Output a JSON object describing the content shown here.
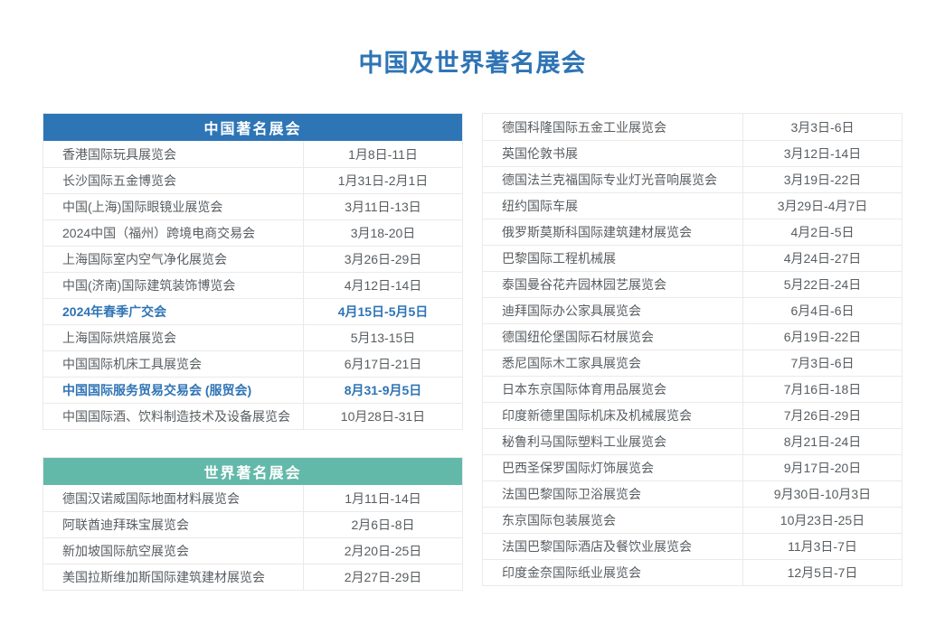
{
  "page_title": "中国及世界著名展会",
  "colors": {
    "title_blue": "#2e74b5",
    "china_header_bg": "#2e75b6",
    "world_header_bg": "#63b9a9",
    "highlight_blue": "#2e74b5",
    "row_text": "#585d61",
    "border": "#eaeaea",
    "page_bg": "#ffffff"
  },
  "china_table": {
    "header": "中国著名展会",
    "rows": [
      {
        "name": "香港国际玩具展览会",
        "date": "1月8日-11日",
        "highlight": false
      },
      {
        "name": "长沙国际五金博览会",
        "date": "1月31日-2月1日",
        "highlight": false
      },
      {
        "name": "中国(上海)国际眼镜业展览会",
        "date": "3月11日-13日",
        "highlight": false
      },
      {
        "name": "2024中国（福州）跨境电商交易会",
        "date": "3月18-20日",
        "highlight": false
      },
      {
        "name": "上海国际室内空气净化展览会",
        "date": "3月26日-29日",
        "highlight": false
      },
      {
        "name": "中国(济南)国际建筑装饰博览会",
        "date": "4月12日-14日",
        "highlight": false
      },
      {
        "name": "2024年春季广交会",
        "date": "4月15日-5月5日",
        "highlight": true
      },
      {
        "name": "上海国际烘焙展览会",
        "date": "5月13-15日",
        "highlight": false
      },
      {
        "name": "中国国际机床工具展览会",
        "date": "6月17日-21日",
        "highlight": false
      },
      {
        "name": "中国国际服务贸易交易会 (服贸会)",
        "date": "8月31-9月5日",
        "highlight": true
      },
      {
        "name": "中国国际酒、饮料制造技术及设备展览会",
        "date": "10月28日-31日",
        "highlight": false
      }
    ]
  },
  "world_table": {
    "header": "世界著名展会",
    "rows": [
      {
        "name": "德国汉诺威国际地面材料展览会",
        "date": "1月11日-14日",
        "highlight": false
      },
      {
        "name": "阿联酋迪拜珠宝展览会",
        "date": "2月6日-8日",
        "highlight": false
      },
      {
        "name": "新加坡国际航空展览会",
        "date": "2月20日-25日",
        "highlight": false
      },
      {
        "name": "美国拉斯维加斯国际建筑建材展览会",
        "date": "2月27日-29日",
        "highlight": false
      }
    ]
  },
  "world_table_continued": {
    "rows": [
      {
        "name": "德国科隆国际五金工业展览会",
        "date": "3月3日-6日",
        "highlight": false
      },
      {
        "name": "英国伦敦书展",
        "date": "3月12日-14日",
        "highlight": false
      },
      {
        "name": "德国法兰克福国际专业灯光音响展览会",
        "date": "3月19日-22日",
        "highlight": false
      },
      {
        "name": "纽约国际车展",
        "date": "3月29日-4月7日",
        "highlight": false
      },
      {
        "name": "俄罗斯莫斯科国际建筑建材展览会",
        "date": "4月2日-5日",
        "highlight": false
      },
      {
        "name": "巴黎国际工程机械展",
        "date": "4月24日-27日",
        "highlight": false
      },
      {
        "name": "泰国曼谷花卉园林园艺展览会",
        "date": "5月22日-24日",
        "highlight": false
      },
      {
        "name": "迪拜国际办公家具展览会",
        "date": "6月4日-6日",
        "highlight": false
      },
      {
        "name": "德国纽伦堡国际石材展览会",
        "date": "6月19日-22日",
        "highlight": false
      },
      {
        "name": "悉尼国际木工家具展览会",
        "date": "7月3日-6日",
        "highlight": false
      },
      {
        "name": "日本东京国际体育用品展览会",
        "date": "7月16日-18日",
        "highlight": false
      },
      {
        "name": "印度新德里国际机床及机械展览会",
        "date": "7月26日-29日",
        "highlight": false
      },
      {
        "name": "秘鲁利马国际塑料工业展览会",
        "date": "8月21日-24日",
        "highlight": false
      },
      {
        "name": "巴西圣保罗国际灯饰展览会",
        "date": "9月17日-20日",
        "highlight": false
      },
      {
        "name": "法国巴黎国际卫浴展览会",
        "date": "9月30日-10月3日",
        "highlight": false
      },
      {
        "name": "东京国际包装展览会",
        "date": "10月23日-25日",
        "highlight": false
      },
      {
        "name": "法国巴黎国际酒店及餐饮业展览会",
        "date": "11月3日-7日",
        "highlight": false
      },
      {
        "name": "印度金奈国际纸业展览会",
        "date": "12月5日-7日",
        "highlight": false
      }
    ]
  }
}
